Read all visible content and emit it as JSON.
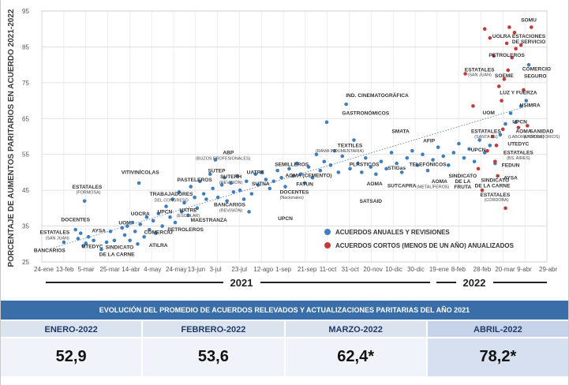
{
  "chart_data": {
    "type": "scatter",
    "ylabel": "PORCENTAJE DE AUMENTOS PARITARIOS EN ACUERDO 2021-2022",
    "ylim": [
      25,
      95
    ],
    "yticks": [
      25,
      35,
      45,
      55,
      65,
      75,
      85,
      95
    ],
    "xlim": [
      0,
      39
    ],
    "xticks": [
      "24-ene",
      "13-feb",
      "5-mar",
      "25-mar",
      "14-abr",
      "4-may",
      "24-may",
      "13-jun",
      "3-jul",
      "23-jul",
      "12-ago",
      "1-sep",
      "21-sep",
      "11-oct",
      "31-oct",
      "20-nov",
      "10-dic",
      "30-dic",
      "19-ene",
      "8-feb",
      "28-feb",
      "20-mar",
      "9-abr",
      "29-abr"
    ],
    "years": [
      "2021",
      "2022"
    ],
    "grid": true,
    "legend_position": "bottom-right",
    "trendline": {
      "style": "dotted",
      "from": [
        0.5,
        28.5
      ],
      "to": [
        37.5,
        68.5
      ]
    },
    "series": [
      {
        "name": "ACUERDOS ANUALES Y REVISIONES",
        "color": "#3f7fbf",
        "points": [
          [
            1.7,
            30.5
          ],
          [
            2.6,
            34.0
          ],
          [
            2.8,
            31.5
          ],
          [
            3.0,
            33.0
          ],
          [
            3.2,
            29.5
          ],
          [
            3.4,
            30.2
          ],
          [
            3.6,
            32.0
          ],
          [
            3.3,
            42.0
          ],
          [
            4.0,
            31.0
          ],
          [
            4.6,
            28.5
          ],
          [
            5.0,
            30.5
          ],
          [
            5.3,
            33.5
          ],
          [
            5.6,
            31.0
          ],
          [
            6.2,
            34.5
          ],
          [
            6.4,
            32.5
          ],
          [
            6.6,
            35.0
          ],
          [
            6.8,
            31.0
          ],
          [
            7.0,
            36.0
          ],
          [
            7.2,
            33.5
          ],
          [
            7.4,
            30.0
          ],
          [
            7.6,
            35.5
          ],
          [
            7.9,
            32.0
          ],
          [
            8.1,
            37.5
          ],
          [
            8.3,
            34.0
          ],
          [
            8.6,
            36.5
          ],
          [
            8.8,
            33.0
          ],
          [
            7.5,
            47.0
          ],
          [
            9.0,
            38.5
          ],
          [
            9.3,
            35.0
          ],
          [
            9.6,
            40.5
          ],
          [
            9.9,
            37.5
          ],
          [
            10.1,
            42.5
          ],
          [
            10.3,
            36.0
          ],
          [
            10.6,
            44.5
          ],
          [
            10.8,
            39.0
          ],
          [
            11.0,
            41.5
          ],
          [
            11.3,
            38.0
          ],
          [
            11.5,
            46.0
          ],
          [
            11.8,
            43.0
          ],
          [
            12.0,
            40.0
          ],
          [
            12.2,
            47.5
          ],
          [
            12.5,
            44.0
          ],
          [
            12.7,
            42.5
          ],
          [
            13.0,
            49.5
          ],
          [
            13.2,
            45.5
          ],
          [
            13.4,
            53.5
          ],
          [
            13.6,
            43.0
          ],
          [
            13.9,
            46.5
          ],
          [
            14.1,
            48.5
          ],
          [
            14.3,
            42.0
          ],
          [
            14.6,
            47.0
          ],
          [
            14.8,
            44.5
          ],
          [
            15.1,
            49.0
          ],
          [
            15.3,
            45.0
          ],
          [
            15.6,
            42.5
          ],
          [
            15.8,
            47.5
          ],
          [
            16.0,
            39.0
          ],
          [
            16.2,
            44.0
          ],
          [
            16.5,
            49.5
          ],
          [
            16.7,
            46.5
          ],
          [
            17.0,
            50.0
          ],
          [
            17.3,
            48.0
          ],
          [
            17.6,
            45.5
          ],
          [
            17.9,
            47.5
          ],
          [
            18.2,
            50.5
          ],
          [
            18.5,
            48.5
          ],
          [
            18.8,
            46.0
          ],
          [
            19.1,
            51.0
          ],
          [
            19.4,
            49.0
          ],
          [
            19.7,
            52.5
          ],
          [
            20.0,
            49.5
          ],
          [
            20.3,
            47.0
          ],
          [
            20.6,
            51.5
          ],
          [
            20.9,
            48.5
          ],
          [
            21.2,
            55.0
          ],
          [
            21.5,
            50.5
          ],
          [
            21.8,
            53.0
          ],
          [
            22.0,
            64.0
          ],
          [
            22.3,
            52.0
          ],
          [
            22.6,
            56.0
          ],
          [
            22.9,
            50.0
          ],
          [
            23.2,
            54.5
          ],
          [
            23.5,
            69.0
          ],
          [
            23.8,
            51.0
          ],
          [
            24.1,
            59.0
          ],
          [
            24.4,
            52.5
          ],
          [
            24.7,
            50.0
          ],
          [
            25.0,
            54.0
          ],
          [
            25.4,
            51.5
          ],
          [
            25.8,
            49.5
          ],
          [
            26.2,
            53.0
          ],
          [
            26.6,
            51.0
          ],
          [
            27.0,
            55.5
          ],
          [
            27.4,
            52.5
          ],
          [
            27.8,
            50.0
          ],
          [
            28.2,
            54.0
          ],
          [
            28.6,
            56.0
          ],
          [
            29.0,
            52.0
          ],
          [
            29.4,
            55.0
          ],
          [
            29.8,
            50.5
          ],
          [
            30.2,
            53.5
          ],
          [
            30.6,
            57.0
          ],
          [
            31.0,
            54.5
          ],
          [
            31.4,
            52.0
          ],
          [
            31.8,
            55.5
          ],
          [
            32.2,
            58.0
          ],
          [
            32.6,
            54.0
          ],
          [
            33.0,
            56.5
          ],
          [
            33.4,
            53.0
          ],
          [
            33.8,
            59.0
          ],
          [
            34.2,
            55.5
          ],
          [
            34.6,
            57.5
          ],
          [
            35.0,
            52.5
          ],
          [
            35.4,
            60.5
          ],
          [
            35.8,
            63.5
          ],
          [
            36.2,
            66.5
          ],
          [
            36.6,
            64.0
          ],
          [
            37.0,
            68.5
          ],
          [
            37.4,
            70.0
          ],
          [
            37.6,
            80.0
          ]
        ]
      },
      {
        "name": "ACUERDOS CORTOS (MENOS DE UN AÑO) ANUALIZADOS",
        "color": "#c23b3b",
        "points": [
          [
            32.7,
            77.5
          ],
          [
            33.3,
            68.5
          ],
          [
            33.7,
            51.0
          ],
          [
            34.0,
            45.0
          ],
          [
            34.2,
            90.0
          ],
          [
            34.4,
            56.0
          ],
          [
            34.6,
            87.5
          ],
          [
            34.8,
            60.0
          ],
          [
            34.9,
            82.5
          ],
          [
            35.0,
            53.0
          ],
          [
            35.1,
            57.5
          ],
          [
            35.2,
            49.0
          ],
          [
            35.3,
            74.0
          ],
          [
            35.5,
            70.0
          ],
          [
            35.6,
            62.0
          ],
          [
            35.7,
            76.0
          ],
          [
            35.8,
            40.0
          ],
          [
            35.9,
            86.0
          ],
          [
            36.0,
            78.5
          ],
          [
            36.1,
            90.5
          ],
          [
            36.3,
            82.0
          ],
          [
            36.5,
            89.0
          ],
          [
            36.6,
            84.5
          ],
          [
            36.8,
            62.5
          ],
          [
            37.0,
            85.5
          ],
          [
            37.2,
            73.0
          ],
          [
            37.5,
            63.0
          ],
          [
            37.8,
            90.5
          ]
        ]
      }
    ],
    "annotations": [
      {
        "text": "BANCARIOS",
        "x": 0.6,
        "y": 27.8
      },
      {
        "text": "ESTATALES",
        "x": 1.0,
        "y": 32.8
      },
      {
        "text": "(SAN JUAN)",
        "x": 1.2,
        "y": 31.3,
        "sub": true
      },
      {
        "text": "DOCENTES",
        "x": 2.6,
        "y": 36.3
      },
      {
        "text": "AYSA",
        "x": 4.4,
        "y": 33.2
      },
      {
        "text": "UTEDYC",
        "x": 3.9,
        "y": 28.8
      },
      {
        "text": "ESTATALES",
        "x": 3.5,
        "y": 45.5
      },
      {
        "text": "(FORMOSA)",
        "x": 3.6,
        "y": 44.0,
        "sub": true
      },
      {
        "text": "SINDICATO",
        "x": 6.0,
        "y": 28.6
      },
      {
        "text": "DE LA CARNE",
        "x": 5.8,
        "y": 26.7
      },
      {
        "text": "UOCRA",
        "x": 7.6,
        "y": 38.0
      },
      {
        "text": "UOM",
        "x": 6.4,
        "y": 35.5
      },
      {
        "text": "ATILRA",
        "x": 9.0,
        "y": 29.2
      },
      {
        "text": "COMERCIO",
        "x": 9.0,
        "y": 32.8
      },
      {
        "text": "UPCN",
        "x": 9.5,
        "y": 38.5
      },
      {
        "text": "VITIVINÍCOLAS",
        "x": 7.6,
        "y": 49.5
      },
      {
        "text": "TRABAJADORES",
        "x": 10.0,
        "y": 43.5
      },
      {
        "text": "DEL CONGRESO",
        "x": 10.0,
        "y": 41.8,
        "sub": true
      },
      {
        "text": "UATRE",
        "x": 11.3,
        "y": 39.0
      },
      {
        "text": "(ESCOLAR)",
        "x": 11.3,
        "y": 37.6,
        "sub": true
      },
      {
        "text": "PETROLEROS",
        "x": 11.1,
        "y": 33.6
      },
      {
        "text": "MAESTRANZA",
        "x": 12.9,
        "y": 36.2
      },
      {
        "text": "PASTELEROS",
        "x": 11.8,
        "y": 47.5
      },
      {
        "text": "SUTEP",
        "x": 13.5,
        "y": 50.0
      },
      {
        "text": "ABP",
        "x": 14.4,
        "y": 55.0
      },
      {
        "text": "(BUZOS PROFESIONALES)",
        "x": 14.0,
        "y": 53.5,
        "sub": true
      },
      {
        "text": "SUTERH",
        "x": 14.6,
        "y": 48.3
      },
      {
        "text": "(REVISIÓN)",
        "x": 14.6,
        "y": 46.8,
        "sub": true
      },
      {
        "text": "BANCARIOS",
        "x": 14.5,
        "y": 40.5
      },
      {
        "text": "(REVISIÓN)",
        "x": 14.6,
        "y": 39.0,
        "sub": true
      },
      {
        "text": "UATRE",
        "x": 16.5,
        "y": 49.5
      },
      {
        "text": "SUTNA",
        "x": 16.9,
        "y": 46.3
      },
      {
        "text": "UPCN",
        "x": 18.8,
        "y": 36.7
      },
      {
        "text": "SEMILLEROS",
        "x": 19.3,
        "y": 51.8
      },
      {
        "text": "AOMA (CEMENTO)",
        "x": 20.6,
        "y": 48.7
      },
      {
        "text": "FATUN",
        "x": 20.3,
        "y": 46.2
      },
      {
        "text": "DOCENTES",
        "x": 19.5,
        "y": 44.0
      },
      {
        "text": "(Nacionales)",
        "x": 19.3,
        "y": 42.6,
        "sub": true
      },
      {
        "text": "TEXTILES",
        "x": 23.8,
        "y": 57.0
      },
      {
        "text": "(RAMA INDUMENTARIA)",
        "x": 23.0,
        "y": 55.6,
        "sub": true
      },
      {
        "text": "PLÁSTICOS",
        "x": 24.9,
        "y": 51.8
      },
      {
        "text": "AOMA",
        "x": 25.7,
        "y": 46.3
      },
      {
        "text": "SATSAID",
        "x": 25.4,
        "y": 41.5
      },
      {
        "text": "IND. CINEMATOGRÁFICA",
        "x": 25.9,
        "y": 71.0
      },
      {
        "text": "GASTRONÓMICOS",
        "x": 25.0,
        "y": 66.0
      },
      {
        "text": "SMATA",
        "x": 27.7,
        "y": 61.0
      },
      {
        "text": "AFIP",
        "x": 29.9,
        "y": 58.4
      },
      {
        "text": "STIGas",
        "x": 27.4,
        "y": 50.8
      },
      {
        "text": "SUTCAPRA",
        "x": 27.8,
        "y": 45.8
      },
      {
        "text": "TELEFÓNICOS",
        "x": 29.8,
        "y": 51.8
      },
      {
        "text": "AOMA",
        "x": 30.7,
        "y": 47.0
      },
      {
        "text": "(METALÍFEROS)",
        "x": 30.2,
        "y": 45.6,
        "sub": true
      },
      {
        "text": "SINDICATO",
        "x": 32.5,
        "y": 48.5
      },
      {
        "text": "DE LA",
        "x": 32.5,
        "y": 47.0
      },
      {
        "text": "FRUTA",
        "x": 32.5,
        "y": 45.5
      },
      {
        "text": "UPCN",
        "x": 33.7,
        "y": 55.8
      },
      {
        "text": "SINDICATO",
        "x": 35.0,
        "y": 47.3
      },
      {
        "text": "DE LA CARNE",
        "x": 34.8,
        "y": 45.8
      },
      {
        "text": "ESTATALES",
        "x": 35.0,
        "y": 43.3
      },
      {
        "text": "(CÓRDOBA)",
        "x": 35.1,
        "y": 41.9,
        "sub": true
      },
      {
        "text": "FEDUN",
        "x": 36.2,
        "y": 51.5
      },
      {
        "text": "AYSA",
        "x": 36.2,
        "y": 48.0
      },
      {
        "text": "SOMU",
        "x": 37.6,
        "y": 92.0
      },
      {
        "text": "UOLRA",
        "x": 35.5,
        "y": 87.5
      },
      {
        "text": "ESTACIONES",
        "x": 37.6,
        "y": 87.5
      },
      {
        "text": "DE SERVICIO",
        "x": 37.6,
        "y": 86.0
      },
      {
        "text": "PETROLEROS",
        "x": 35.9,
        "y": 82.2
      },
      {
        "text": "COMERCIO",
        "x": 38.2,
        "y": 78.4
      },
      {
        "text": "SEGURO",
        "x": 38.1,
        "y": 76.4
      },
      {
        "text": "ESTATALES",
        "x": 33.8,
        "y": 78.2
      },
      {
        "text": "(SAN JUAN)",
        "x": 33.8,
        "y": 76.8,
        "sub": true
      },
      {
        "text": "SOEME",
        "x": 35.7,
        "y": 76.5
      },
      {
        "text": "LUZ Y FUERZA",
        "x": 36.8,
        "y": 71.8
      },
      {
        "text": "USIMRA",
        "x": 37.7,
        "y": 68.2
      },
      {
        "text": "UOM",
        "x": 34.5,
        "y": 66.2
      },
      {
        "text": "UPCN",
        "x": 36.9,
        "y": 63.6
      },
      {
        "text": "ESTATALES",
        "x": 34.3,
        "y": 61.0
      },
      {
        "text": "(SANTA FE)",
        "x": 34.3,
        "y": 59.6,
        "sub": true
      },
      {
        "text": "AOMA",
        "x": 37.2,
        "y": 61.0
      },
      {
        "text": "(LABORATORIOS)",
        "x": 37.4,
        "y": 59.6,
        "sub": true
      },
      {
        "text": "SANIDAD",
        "x": 38.6,
        "y": 61.0
      },
      {
        "text": "(LABORATORIOS)",
        "x": 38.6,
        "y": 59.6,
        "sub": true
      },
      {
        "text": "UTEDYC",
        "x": 36.8,
        "y": 57.5
      },
      {
        "text": "ESTATALES",
        "x": 36.8,
        "y": 55.0
      },
      {
        "text": "(BS. AIRES)",
        "x": 36.8,
        "y": 53.6,
        "sub": true
      }
    ]
  },
  "summary": {
    "title": "EVOLUCIÓN DEL PROMEDIO DE ACUERDOS RELEVADOS Y ACTUALIZACIONES PARITARIAS DEL AÑO 2021",
    "months": [
      "ENERO-2022",
      "FEBRERO-2022",
      "MARZO-2022",
      "ABRIL-2022"
    ],
    "values": [
      "52,9",
      "53,6",
      "62,4*",
      "78,2*"
    ]
  }
}
